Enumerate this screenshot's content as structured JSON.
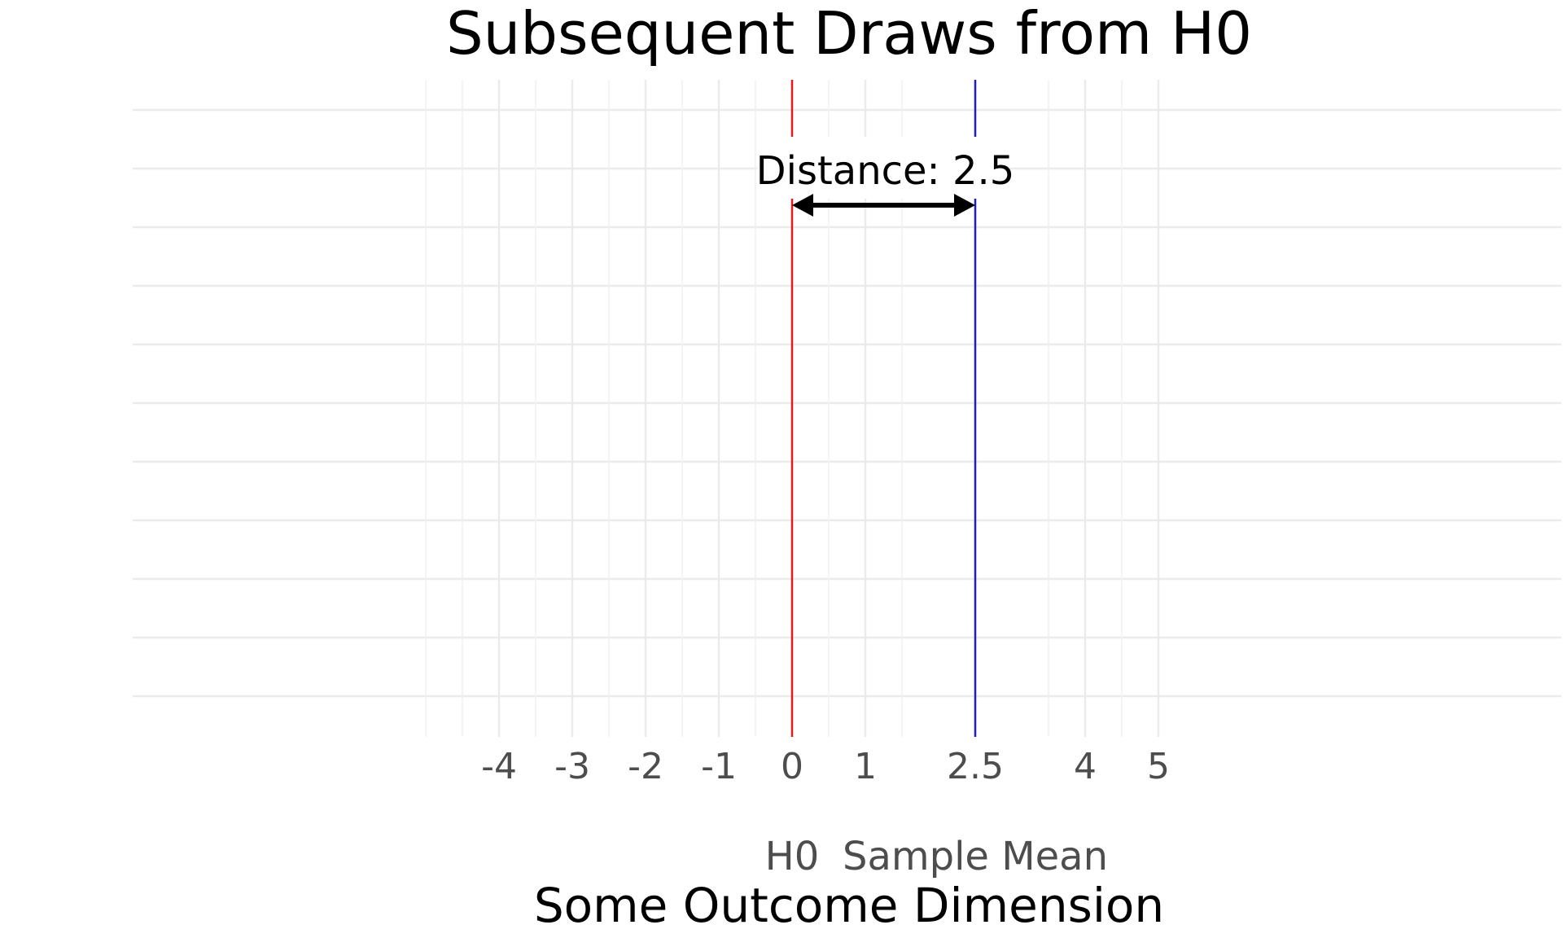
{
  "chart_data": {
    "type": "line",
    "title": "Subsequent Draws from H0",
    "xlabel": "Some Outcome Dimension",
    "ylabel": "",
    "xlim": [
      -9,
      10.5
    ],
    "grid": true,
    "x_ticks": [
      {
        "value": -4,
        "label": "-4"
      },
      {
        "value": -3,
        "label": "-3"
      },
      {
        "value": -2,
        "label": "-2"
      },
      {
        "value": -1,
        "label": "-1"
      },
      {
        "value": 0,
        "label": "0"
      },
      {
        "value": 1,
        "label": "1"
      },
      {
        "value": 2.5,
        "label": "2.5"
      },
      {
        "value": 4,
        "label": "4"
      },
      {
        "value": 5,
        "label": "5"
      }
    ],
    "reference_lines": [
      {
        "label": "H0",
        "x": 0,
        "color": "#e41a1c"
      },
      {
        "label": "Sample Mean",
        "x": 2.5,
        "color": "#1f1fbf"
      }
    ],
    "annotation": {
      "text": "Distance: 2.5",
      "from": 0,
      "to": 2.5,
      "color": "#000000"
    }
  }
}
